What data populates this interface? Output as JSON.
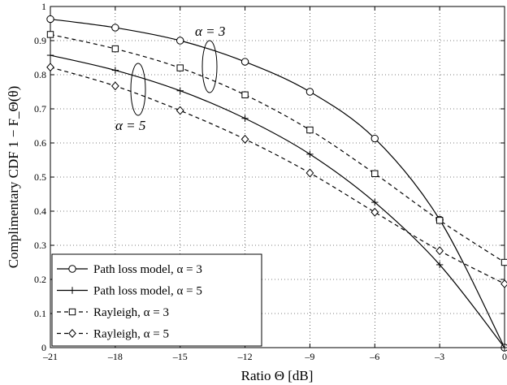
{
  "chart_data": {
    "type": "line",
    "xlabel": "Ratio Θ [dB]",
    "ylabel": "Complimentary CDF 1 − F_Θ(θ)",
    "xlim": [
      -21,
      0
    ],
    "ylim": [
      0,
      1
    ],
    "xticks": [
      -21,
      -18,
      -15,
      -12,
      -9,
      -6,
      -3,
      0
    ],
    "yticks": [
      0,
      0.1,
      0.2,
      0.3,
      0.4,
      0.5,
      0.6,
      0.7,
      0.8,
      0.9,
      1
    ],
    "grid": true,
    "legend_position": "bottom-left",
    "series": [
      {
        "name": "Path loss model, α = 3",
        "style": "solid",
        "marker": "circle",
        "x": [
          -21,
          -18,
          -15,
          -12,
          -9,
          -6,
          -3,
          0
        ],
        "y": [
          0.963,
          0.938,
          0.9,
          0.838,
          0.75,
          0.613,
          0.375,
          0.0
        ]
      },
      {
        "name": "Path loss model, α = 5",
        "style": "solid",
        "marker": "plus",
        "x": [
          -21,
          -18,
          -15,
          -12,
          -9,
          -6,
          -3,
          0
        ],
        "y": [
          0.857,
          0.813,
          0.753,
          0.672,
          0.567,
          0.426,
          0.243,
          0.0
        ]
      },
      {
        "name": "Rayleigh, α = 3",
        "style": "dashed",
        "marker": "square",
        "x": [
          -21,
          -18,
          -15,
          -12,
          -9,
          -6,
          -3,
          0
        ],
        "y": [
          0.918,
          0.876,
          0.82,
          0.741,
          0.638,
          0.51,
          0.373,
          0.25
        ]
      },
      {
        "name": "Rayleigh, α = 5",
        "style": "dashed",
        "marker": "diamond",
        "x": [
          -21,
          -18,
          -15,
          -12,
          -9,
          -6,
          -3,
          0
        ],
        "y": [
          0.822,
          0.767,
          0.695,
          0.611,
          0.512,
          0.397,
          0.284,
          0.187
        ]
      }
    ],
    "annotations": [
      {
        "text": "α = 3"
      },
      {
        "text": "α = 5"
      }
    ]
  }
}
